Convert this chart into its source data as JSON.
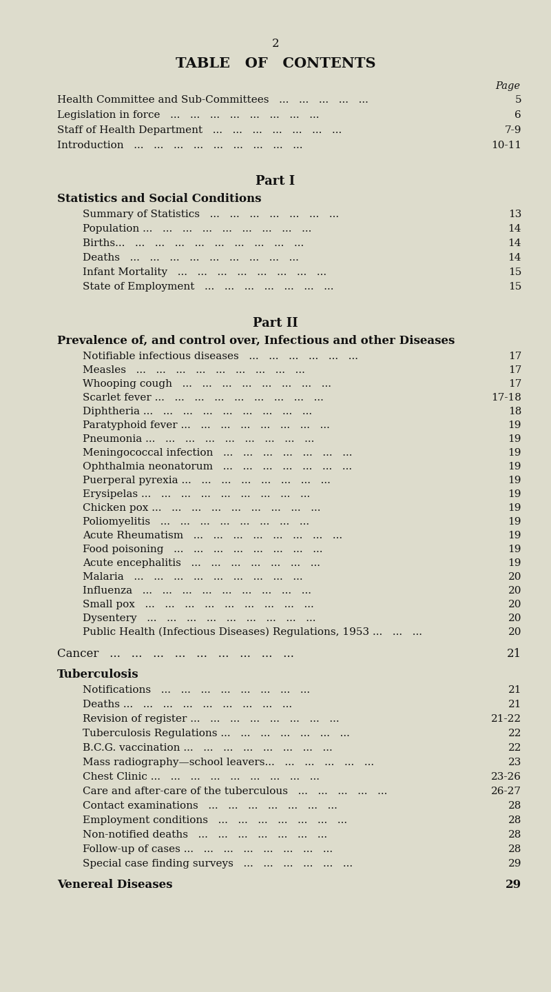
{
  "bg_color": "#dddccc",
  "text_color": "#111111",
  "page_number": "2",
  "title": "TABLE   OF   CONTENTS",
  "page_label": "Page",
  "top_entries": [
    {
      "text": "Health Committee and Sub-Committees",
      "dots": "   ...   ...   ...   ...   ...",
      "page": "5"
    },
    {
      "text": "Legislation in force",
      "dots": "   ...   ...   ...   ...   ...   ...   ...   ...",
      "page": "6"
    },
    {
      "text": "Staff of Health Department",
      "dots": "   ...   ...   ...   ...   ...   ...   ...",
      "page": "7-9"
    },
    {
      "text": "Introduction",
      "dots": "   ...   ...   ...   ...   ...   ...   ...   ...   ...",
      "page": "10-11"
    }
  ],
  "part1_title": "Part I",
  "part1_section": "Statistics and Social Conditions",
  "part1_entries": [
    {
      "text": "Summary of Statistics",
      "dots": "   ...   ...   ...   ...   ...   ...   ...",
      "page": "13"
    },
    {
      "text": "Population ...",
      "dots": "   ...   ...   ...   ...   ...   ...   ...   ...",
      "page": "14"
    },
    {
      "text": "Births...",
      "dots": "   ...   ...   ...   ...   ...   ...   ...   ...   ...",
      "page": "14"
    },
    {
      "text": "Deaths",
      "dots": "   ...   ...   ...   ...   ...   ...   ...   ...   ...",
      "page": "14"
    },
    {
      "text": "Infant Mortality",
      "dots": "   ...   ...   ...   ...   ...   ...   ...   ...",
      "page": "15"
    },
    {
      "text": "State of Employment",
      "dots": "   ...   ...   ...   ...   ...   ...   ...",
      "page": "15"
    }
  ],
  "part2_title": "Part II",
  "part2_section": "Prevalence of, and control over, Infectious and other Diseases",
  "part2_sub_entries": [
    {
      "text": "Notifiable infectious diseases",
      "dots": "   ...   ...   ...   ...   ...   ...",
      "page": "17"
    },
    {
      "text": "Measles",
      "dots": "   ...   ...   ...   ...   ...   ...   ...   ...   ...",
      "page": "17"
    },
    {
      "text": "Whooping cough",
      "dots": "   ...   ...   ...   ...   ...   ...   ...   ...",
      "page": "17"
    },
    {
      "text": "Scarlet fever ...",
      "dots": "   ...   ...   ...   ...   ...   ...   ...   ...",
      "page": "17-18"
    },
    {
      "text": "Diphtheria ...",
      "dots": "   ...   ...   ...   ...   ...   ...   ...   ...",
      "page": "18"
    },
    {
      "text": "Paratyphoid fever ...",
      "dots": "   ...   ...   ...   ...   ...   ...   ...",
      "page": "19"
    },
    {
      "text": "Pneumonia ...",
      "dots": "   ...   ...   ...   ...   ...   ...   ...   ...",
      "page": "19"
    },
    {
      "text": "Meningococcal infection",
      "dots": "   ...   ...   ...   ...   ...   ...   ...",
      "page": "19"
    },
    {
      "text": "Ophthalmia neonatorum",
      "dots": "   ...   ...   ...   ...   ...   ...   ...",
      "page": "19"
    },
    {
      "text": "Puerperal pyrexia ...",
      "dots": "   ...   ...   ...   ...   ...   ...   ...",
      "page": "19"
    },
    {
      "text": "Erysipelas ...",
      "dots": "   ...   ...   ...   ...   ...   ...   ...   ...",
      "page": "19"
    },
    {
      "text": "Chicken pox ...",
      "dots": "   ...   ...   ...   ...   ...   ...   ...   ...",
      "page": "19"
    },
    {
      "text": "Poliomyelitis",
      "dots": "   ...   ...   ...   ...   ...   ...   ...   ...",
      "page": "19"
    },
    {
      "text": "Acute Rheumatism",
      "dots": "   ...   ...   ...   ...   ...   ...   ...   ...",
      "page": "19"
    },
    {
      "text": "Food poisoning",
      "dots": "   ...   ...   ...   ...   ...   ...   ...   ...",
      "page": "19"
    },
    {
      "text": "Acute encephalitis",
      "dots": "   ...   ...   ...   ...   ...   ...   ...",
      "page": "19"
    },
    {
      "text": "Malaria",
      "dots": "   ...   ...   ...   ...   ...   ...   ...   ...   ...",
      "page": "20"
    },
    {
      "text": "Influenza",
      "dots": "   ...   ...   ...   ...   ...   ...   ...   ...   ...",
      "page": "20"
    },
    {
      "text": "Small pox",
      "dots": "   ...   ...   ...   ...   ...   ...   ...   ...   ...",
      "page": "20"
    },
    {
      "text": "Dysentery",
      "dots": "   ...   ...   ...   ...   ...   ...   ...   ...   ...",
      "page": "20"
    },
    {
      "text": "Public Health (Infectious Diseases) Regulations, 1953 ...",
      "dots": "   ...   ...",
      "page": "20"
    }
  ],
  "cancer_entry": {
    "text": "Cancer",
    "dots": "   ...   ...   ...   ...   ...   ...   ...   ...   ...",
    "page": "21"
  },
  "tb_section": "Tuberculosis",
  "tb_entries": [
    {
      "text": "Notifications",
      "dots": "   ...   ...   ...   ...   ...   ...   ...   ...",
      "page": "21"
    },
    {
      "text": "Deaths ...",
      "dots": "   ...   ...   ...   ...   ...   ...   ...   ...",
      "page": "21"
    },
    {
      "text": "Revision of register ...",
      "dots": "   ...   ...   ...   ...   ...   ...   ...",
      "page": "21-22"
    },
    {
      "text": "Tuberculosis Regulations ...",
      "dots": "   ...   ...   ...   ...   ...   ...",
      "page": "22"
    },
    {
      "text": "B.C.G. vaccination ...",
      "dots": "   ...   ...   ...   ...   ...   ...   ...",
      "page": "22"
    },
    {
      "text": "Mass radiography—school leavers...",
      "dots": "   ...   ...   ...   ...   ...",
      "page": "23"
    },
    {
      "text": "Chest Clinic ...",
      "dots": "   ...   ...   ...   ...   ...   ...   ...   ...",
      "page": "23-26"
    },
    {
      "text": "Care and after-care of the tuberculous",
      "dots": "   ...   ...   ...   ...   ...",
      "page": "26-27"
    },
    {
      "text": "Contact examinations",
      "dots": "   ...   ...   ...   ...   ...   ...   ...",
      "page": "28"
    },
    {
      "text": "Employment conditions",
      "dots": "   ...   ...   ...   ...   ...   ...   ...",
      "page": "28"
    },
    {
      "text": "Non-notified deaths",
      "dots": "   ...   ...   ...   ...   ...   ...   ...",
      "page": "28"
    },
    {
      "text": "Follow-up of cases ...",
      "dots": "   ...   ...   ...   ...   ...   ...   ...",
      "page": "28"
    },
    {
      "text": "Special case finding surveys",
      "dots": "   ...   ...   ...   ...   ...   ...",
      "page": "29"
    }
  ],
  "vd_entry": {
    "text": "Venereal Diseases",
    "page": "29"
  }
}
